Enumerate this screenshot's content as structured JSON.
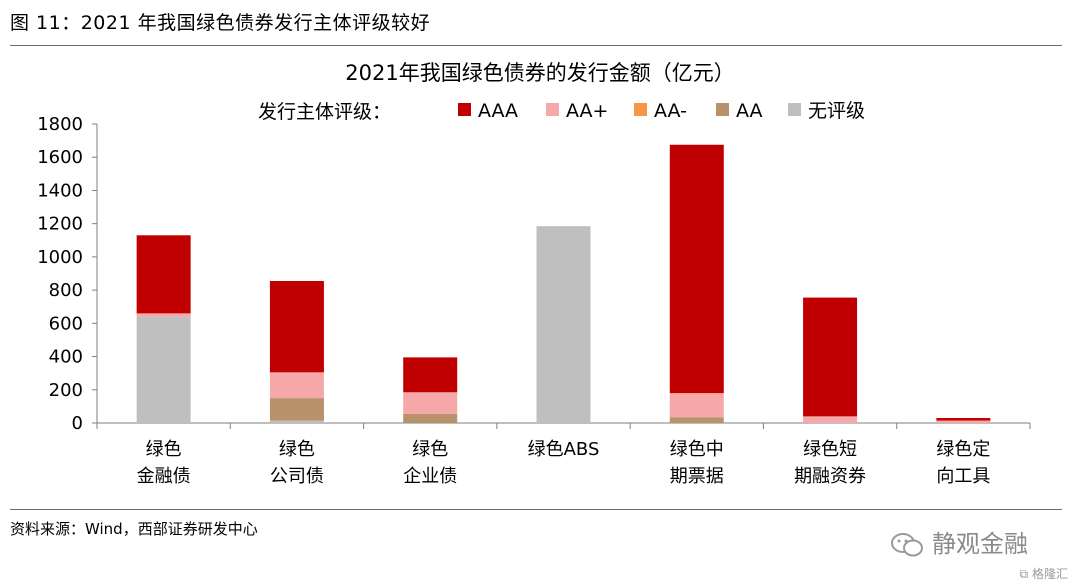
{
  "caption": "图 11：2021 年我国绿色债券发行主体评级较好",
  "source": "资料来源：Wind，西部证券研发中心",
  "watermark": "静观金融",
  "corner_logo": "格隆汇",
  "chart_data": {
    "type": "bar",
    "stacked": true,
    "title": "2021年我国绿色债券的发行金额（亿元）",
    "legend_title": "发行主体评级：",
    "legend_position": "top",
    "grid": false,
    "ylim": [
      0,
      1800
    ],
    "yticks": [
      0,
      200,
      400,
      600,
      800,
      1000,
      1200,
      1400,
      1600,
      1800
    ],
    "categories": [
      [
        "绿色",
        "金融债"
      ],
      [
        "绿色",
        "公司债"
      ],
      [
        "绿色",
        "企业债"
      ],
      [
        "绿色ABS"
      ],
      [
        "绿色中",
        "期票据"
      ],
      [
        "绿色短",
        "期融资券"
      ],
      [
        "绿色定",
        "向工具"
      ]
    ],
    "series": [
      {
        "name": "无评级",
        "color": "#bfbfbf",
        "values": [
          640,
          15,
          0,
          1185,
          0,
          0,
          0
        ]
      },
      {
        "name": "AA",
        "color": "#b8926a",
        "values": [
          0,
          135,
          55,
          0,
          35,
          0,
          0
        ]
      },
      {
        "name": "AA-",
        "color": "#f79646",
        "values": [
          0,
          0,
          0,
          0,
          0,
          0,
          0
        ]
      },
      {
        "name": "AA+",
        "color": "#f6a8a8",
        "values": [
          20,
          155,
          130,
          0,
          145,
          40,
          15
        ]
      },
      {
        "name": "AAA",
        "color": "#c00000",
        "values": [
          470,
          550,
          210,
          0,
          1495,
          715,
          15
        ]
      }
    ],
    "legend_order": [
      "AAA",
      "AA+",
      "AA-",
      "AA",
      "无评级"
    ]
  }
}
